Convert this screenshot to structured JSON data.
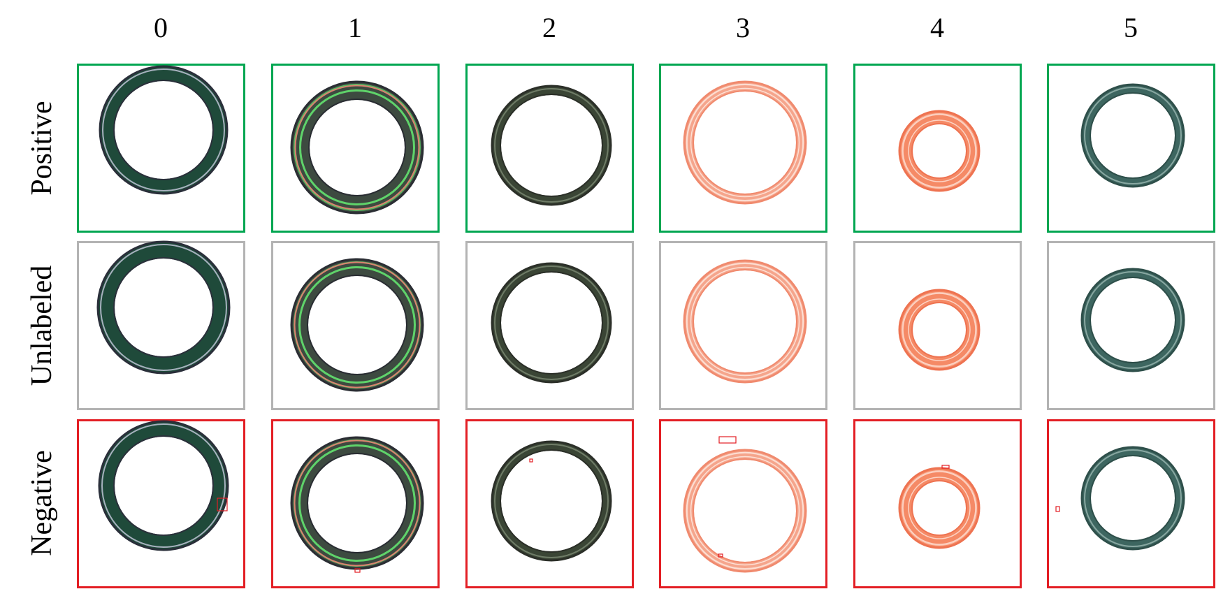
{
  "columns": [
    "0",
    "1",
    "2",
    "3",
    "4",
    "5"
  ],
  "rows": [
    {
      "key": "positive",
      "label": "Positive",
      "border_color": "#00a651"
    },
    {
      "key": "unlabeled",
      "label": "Unlabeled",
      "border_color": "#b3b3b3"
    },
    {
      "key": "negative",
      "label": "Negative",
      "border_color": "#e31e24"
    }
  ],
  "ring_styles": [
    {
      "column": "0",
      "ring_color": "#1f4a3a",
      "edge_color": "#2a2f3a",
      "highlight": "#c9cbe0"
    },
    {
      "column": "1",
      "ring_color": "#3d4a40",
      "edge_color": "#2a2d33",
      "highlight": "#5fd36a"
    },
    {
      "column": "2",
      "ring_color": "#3a4535",
      "edge_color": "#2b2f28",
      "highlight": "#7d8a74"
    },
    {
      "column": "3",
      "ring_color": "#f5a58c",
      "edge_color": "#f08a6e",
      "highlight": "#fde0d5"
    },
    {
      "column": "4",
      "ring_color": "#f58a66",
      "edge_color": "#ee7351",
      "highlight": "#fdd3c4"
    },
    {
      "column": "5",
      "ring_color": "#3d6660",
      "edge_color": "#2e4f4a",
      "highlight": "#9bb8b2"
    }
  ],
  "defect_marker_color": "#e31e24"
}
